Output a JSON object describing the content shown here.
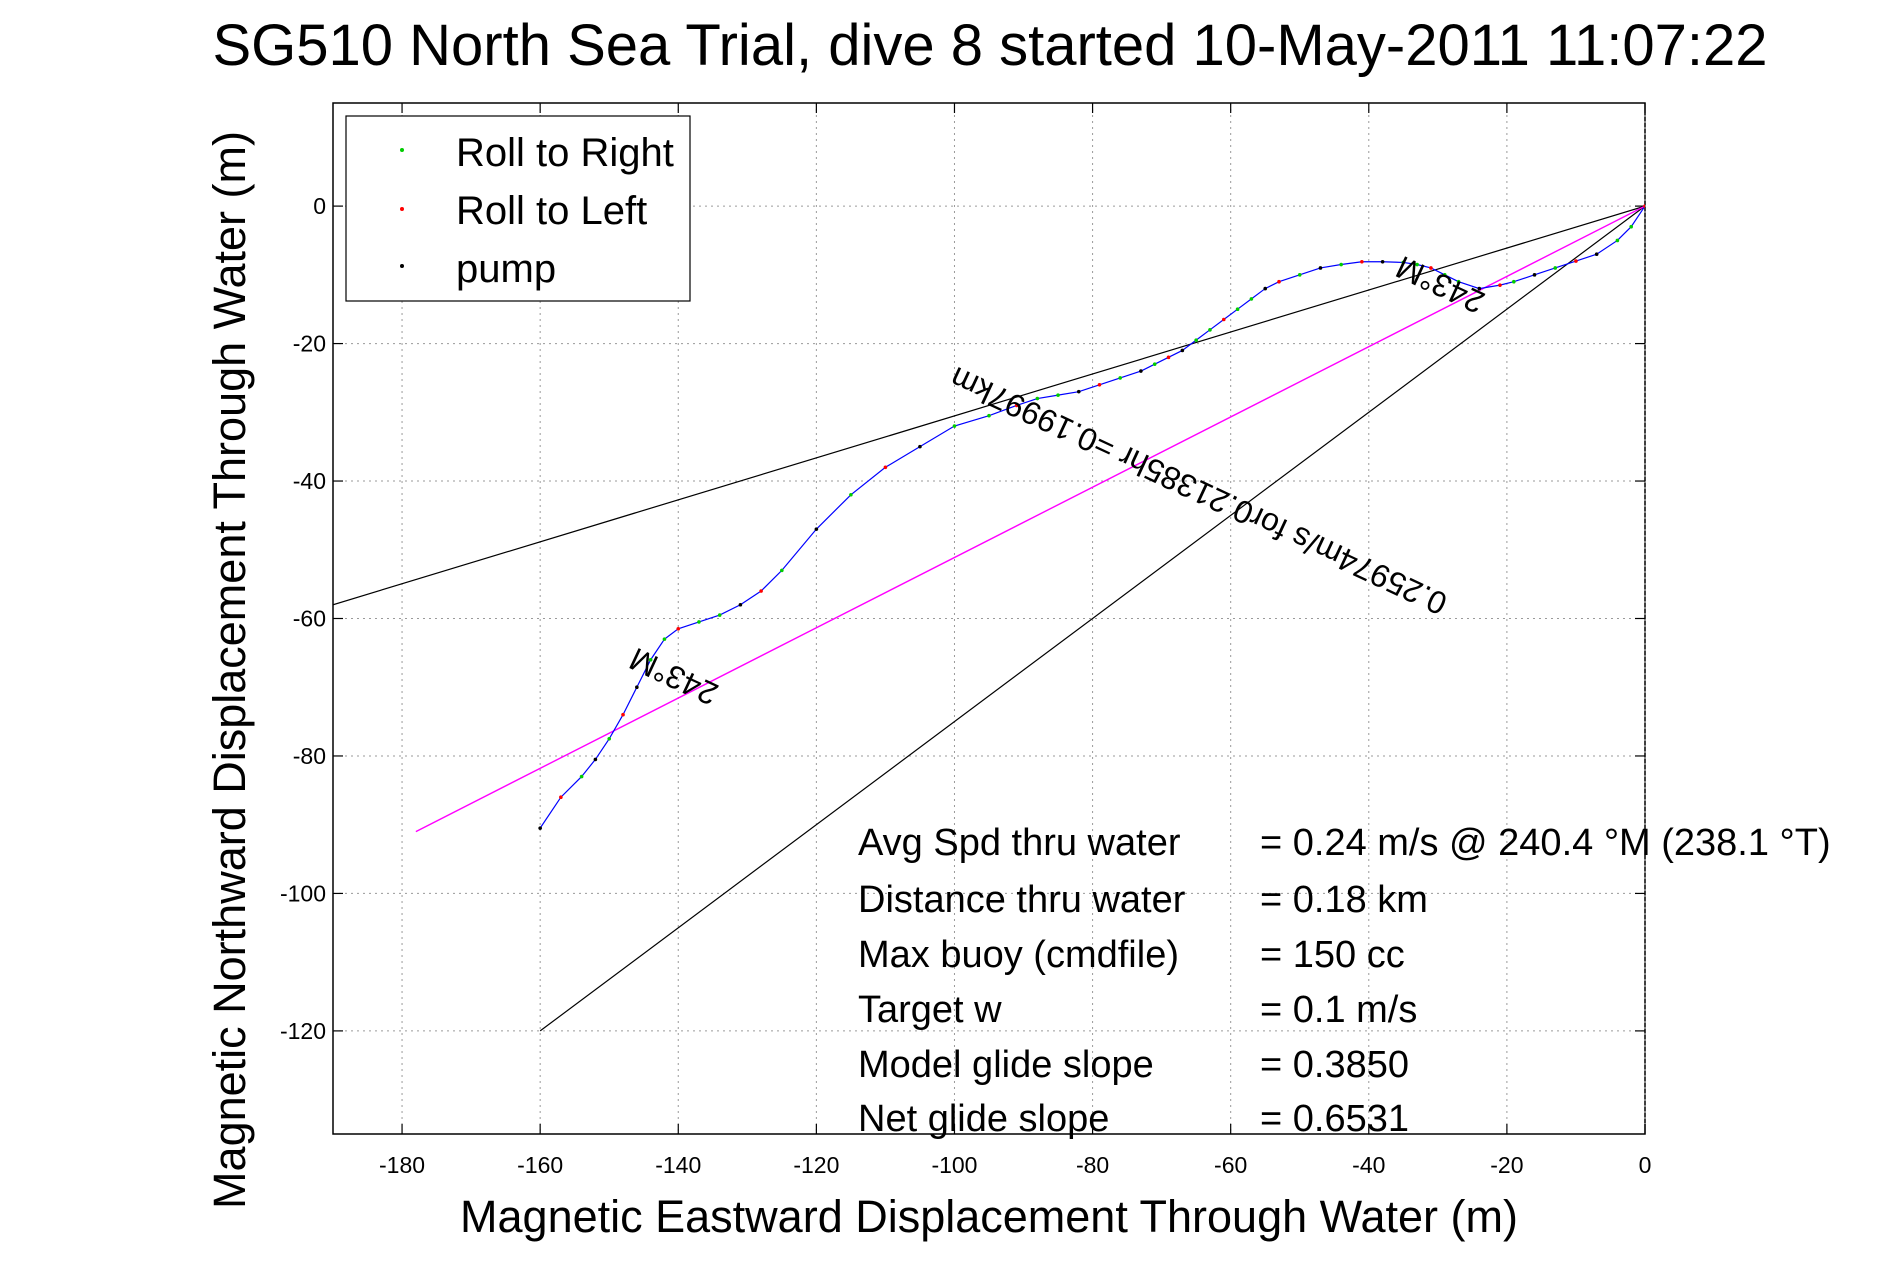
{
  "chart_data": {
    "type": "line",
    "title": "SG510 North Sea Trial, dive 8 started 10-May-2011 11:07:22",
    "xlabel": "Magnetic Eastward Displacement Through Water (m)",
    "ylabel": "Magnetic Northward Displacement Through Water (m)",
    "xlim": [
      -190,
      0
    ],
    "ylim": [
      -135,
      15
    ],
    "grid": true,
    "x_ticks": [
      -180,
      -160,
      -140,
      -120,
      -100,
      -80,
      -60,
      -40,
      -20,
      0
    ],
    "y_ticks": [
      0,
      -20,
      -40,
      -60,
      -80,
      -100,
      -120
    ],
    "legend": {
      "placement": "top-left",
      "entries": [
        {
          "label": "Roll to Right",
          "color": "#00cc00"
        },
        {
          "label": "Roll to Left",
          "color": "#ff0000"
        },
        {
          "label": "pump",
          "color": "#000000"
        }
      ]
    },
    "track": {
      "color": "#0000ff",
      "x": [
        0,
        -2,
        -4,
        -7,
        -10,
        -13,
        -16,
        -19,
        -21,
        -24,
        -27,
        -29,
        -31,
        -33,
        -35,
        -38,
        -41,
        -44,
        -47,
        -50,
        -53,
        -55,
        -57,
        -59,
        -61,
        -63,
        -65,
        -67,
        -69,
        -71,
        -73,
        -76,
        -79,
        -82,
        -85,
        -88,
        -91,
        -95,
        -100,
        -105,
        -110,
        -115,
        -120,
        -125,
        -128,
        -131,
        -134,
        -137,
        -140,
        -142,
        -144,
        -146,
        -148,
        -150,
        -152,
        -154,
        -157,
        -160
      ],
      "y": [
        0,
        -3,
        -5,
        -7,
        -8,
        -9,
        -10,
        -11,
        -11.5,
        -12,
        -11,
        -10,
        -9,
        -8.5,
        -8.2,
        -8.1,
        -8.1,
        -8.5,
        -9,
        -10,
        -11,
        -12,
        -13.5,
        -15,
        -16.5,
        -18,
        -19.5,
        -21,
        -22,
        -23,
        -24,
        -25,
        -26,
        -27,
        -27.5,
        -28,
        -29,
        -30.5,
        -32,
        -35,
        -38,
        -42,
        -47,
        -53,
        -56,
        -58,
        -59.5,
        -60.5,
        -61.5,
        -63,
        -66,
        -70,
        -74,
        -77.5,
        -80.5,
        -83,
        -86,
        -90.5
      ]
    },
    "heading_line": {
      "color": "#ff00ff",
      "x": [
        0,
        -178
      ],
      "y": [
        0,
        -91
      ]
    },
    "reference_lines": [
      {
        "color": "#000000",
        "x": [
          0,
          -190
        ],
        "y": [
          0,
          -58
        ]
      },
      {
        "color": "#000000",
        "x": [
          0,
          -160
        ],
        "y": [
          0,
          -120
        ]
      }
    ],
    "annotations": [
      {
        "text": "243°M",
        "x": -29,
        "y": -10,
        "rotation": 25
      },
      {
        "text": "0.25974m/s for0.21385hr =0.19997km",
        "x": -64,
        "y": -40,
        "rotation": 25
      },
      {
        "text": "243°M",
        "x": -140,
        "y": -67,
        "rotation": 25
      }
    ],
    "stats": [
      {
        "label": "Avg Spd thru water",
        "value": "=  0.24 m/s @ 240.4 °M (238.1 °T)"
      },
      {
        "label": "Distance thru water",
        "value": "=  0.18 km"
      },
      {
        "label": "Max buoy (cmdfile)",
        "value": "= 150 cc"
      },
      {
        "label": "Target w",
        "value": "= 0.1 m/s"
      },
      {
        "label": "Model glide slope",
        "value": "= 0.3850"
      },
      {
        "label": "Net glide slope",
        "value": "= 0.6531"
      }
    ]
  }
}
